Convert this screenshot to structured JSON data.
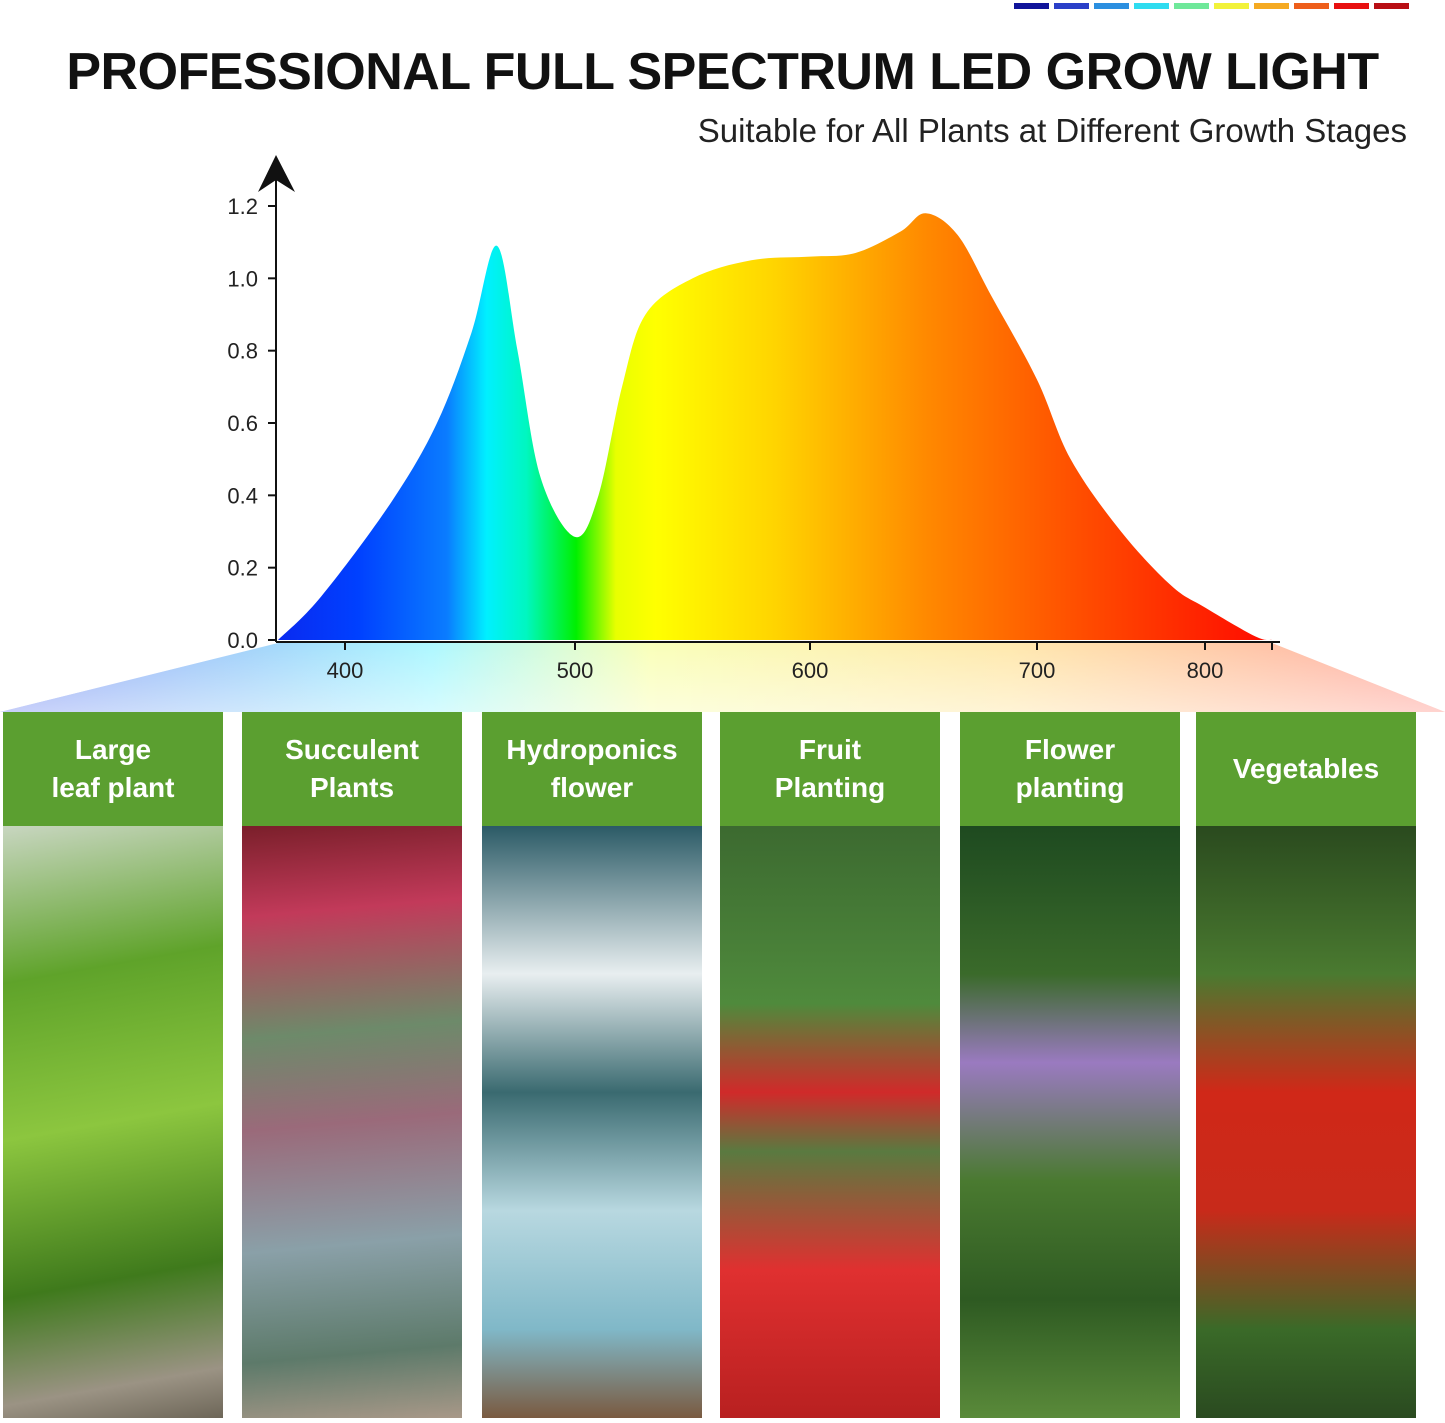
{
  "header": {
    "title": "PROFESSIONAL FULL SPECTRUM LED GROW LIGHT",
    "subtitle": "Suitable for All Plants at Different Growth Stages"
  },
  "swatch_colors": [
    "#10149a",
    "#2a3fc8",
    "#2b8fe0",
    "#2fdcf0",
    "#6fe89a",
    "#f2f23a",
    "#f5aa22",
    "#ee5e1a",
    "#e81010",
    "#b80e14"
  ],
  "chart_data": {
    "type": "area",
    "title": "",
    "xlabel": "",
    "ylabel": "",
    "xticks": [
      400,
      500,
      600,
      700,
      800
    ],
    "yticks": [
      "0.0",
      "0.2",
      "0.4",
      "0.6",
      "0.8",
      "1.0",
      "1.2"
    ],
    "ylim": [
      0,
      1.2
    ],
    "grid": false,
    "fill": "visible-spectrum gradient",
    "x": [
      372,
      390,
      420,
      440,
      455,
      466,
      475,
      485,
      500,
      510,
      520,
      530,
      550,
      575,
      600,
      620,
      640,
      651,
      665,
      680,
      700,
      720,
      750,
      780,
      800,
      830,
      840
    ],
    "y": [
      0,
      0.12,
      0.38,
      0.6,
      0.85,
      1.09,
      0.8,
      0.45,
      0.285,
      0.4,
      0.7,
      0.9,
      1.0,
      1.05,
      1.06,
      1.07,
      1.13,
      1.18,
      1.12,
      0.95,
      0.72,
      0.5,
      0.3,
      0.15,
      0.09,
      0.01,
      0
    ]
  },
  "panels": [
    {
      "label": "Large leaf plant",
      "lines": [
        "Large",
        "leaf plant"
      ],
      "photo": "leafy green seedlings"
    },
    {
      "label": "Succulent Plants",
      "lines": [
        "Succulent",
        "Plants"
      ],
      "photo": "succulents"
    },
    {
      "label": "Hydroponics flower",
      "lines": [
        "Hydroponics",
        "flower"
      ],
      "photo": "white flowers in glass vase"
    },
    {
      "label": "Fruit Planting",
      "lines": [
        "Fruit",
        "Planting"
      ],
      "photo": "strawberries"
    },
    {
      "label": "Flower planting",
      "lines": [
        "Flower",
        "planting"
      ],
      "photo": "purple flower stem"
    },
    {
      "label": "Vegetables",
      "lines": [
        "Vegetables"
      ],
      "photo": "cherry tomatoes"
    }
  ]
}
